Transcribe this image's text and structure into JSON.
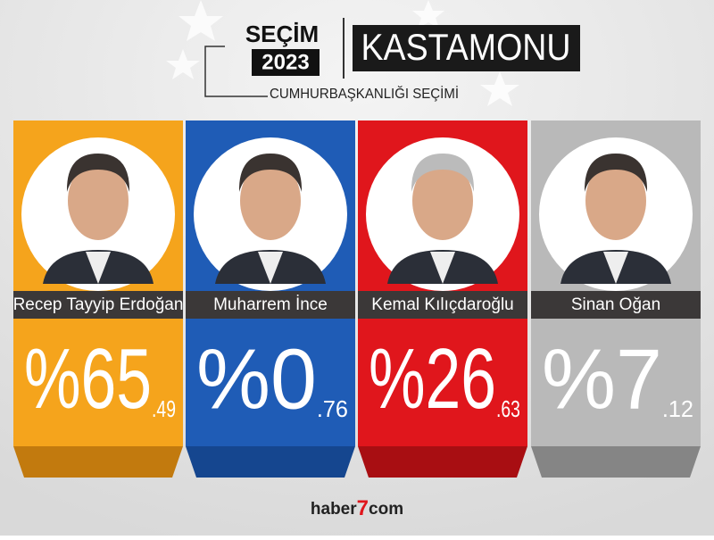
{
  "header": {
    "badge_top": "SEÇİM",
    "badge_year": "2023",
    "province": "KASTAMONU",
    "subtitle": "CUMHURBAŞKANLIĞI SEÇİMİ"
  },
  "candidates": [
    {
      "name": "Recep Tayyip Erdoğan",
      "whole": "%65",
      "fraction": ".49",
      "color": "#f5a41c",
      "shade": "#c27a0e"
    },
    {
      "name": "Muharrem İnce",
      "whole": "%0",
      "fraction": ".76",
      "color": "#1f5cb6",
      "shade": "#15468f"
    },
    {
      "name": "Kemal Kılıçdaroğlu",
      "whole": "%26",
      "fraction": ".63",
      "color": "#e0161c",
      "shade": "#a80e12"
    },
    {
      "name": "Sinan Oğan",
      "whole": "%7",
      "fraction": ".12",
      "color": "#b9b9b9",
      "shade": "#858585"
    }
  ],
  "footer": {
    "logo_left": "haber",
    "logo_mid": "7",
    "logo_right": "com"
  }
}
